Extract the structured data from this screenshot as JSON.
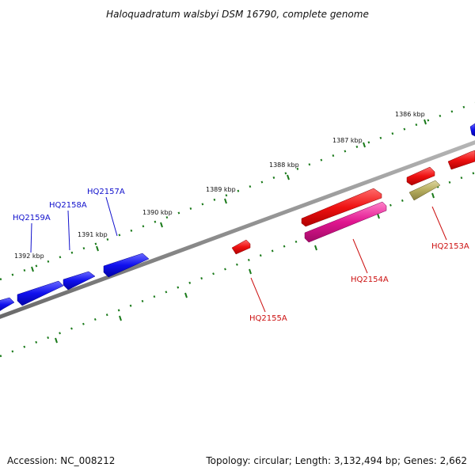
{
  "title": "Haloquadratum walsbyi DSM 16790, complete genome",
  "footer": {
    "accession": "Accession: NC_008212",
    "summary": "Topology: circular; Length: 3,132,494 bp; Genes: 2,662"
  },
  "scale_labels": [
    "1386 kbp",
    "1387 kbp",
    "1388 kbp",
    "1389 kbp",
    "1390 kbp",
    "1391 kbp",
    "1392 kbp"
  ],
  "gene_labels": {
    "hq2159a": "HQ2159A",
    "hq2158a": "HQ2158A",
    "hq2157a": "HQ2157A",
    "hq2155a": "HQ2155A",
    "hq2154a": "HQ2154A",
    "hq2153a": "HQ2153A"
  },
  "colors": {
    "forward_gene": "#1010ee",
    "reverse_gene": "#ee1111",
    "magenta_gene": "#e0158f",
    "olive_gene": "#b5ac5e",
    "backbone": "#8a8a8a",
    "tick": "#1a7a1a",
    "forward_label": "#1010cc",
    "reverse_label": "#cc1010"
  }
}
